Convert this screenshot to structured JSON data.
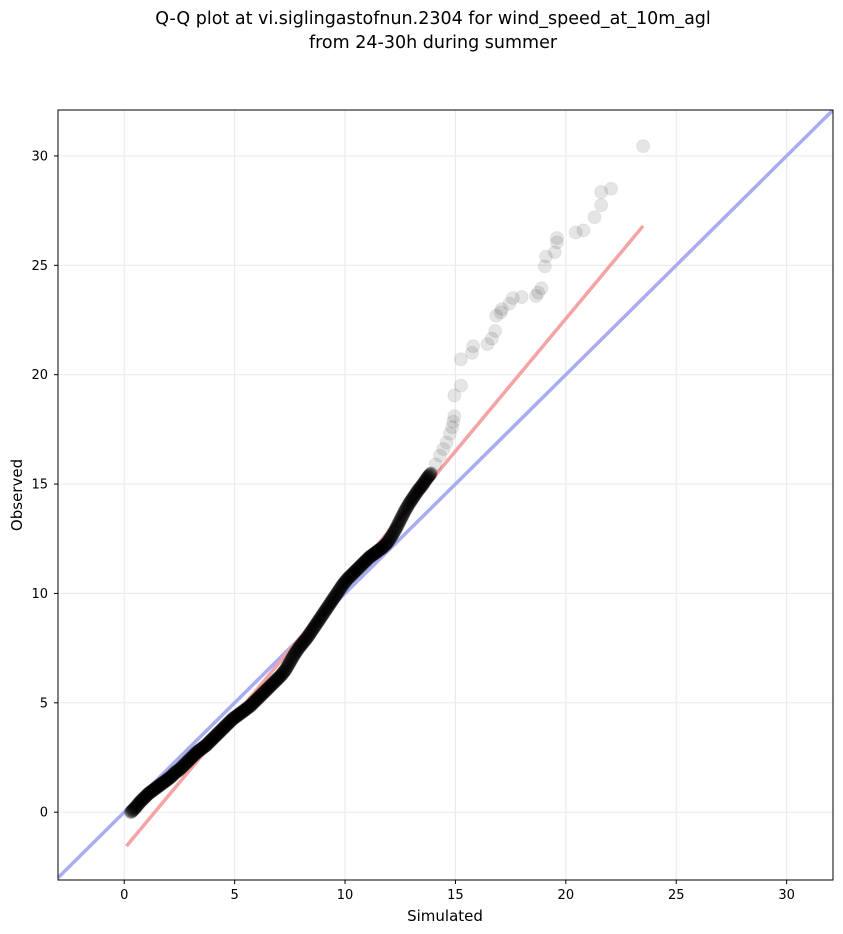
{
  "chart_data": {
    "type": "scatter",
    "title_lines": [
      "Q-Q plot at vi.siglingastofnun.2304 for wind_speed_at_10m_agl",
      "from 24-30h during summer"
    ],
    "xlabel": "Simulated",
    "ylabel": "Observed",
    "xlim": [
      -3.0,
      32.1
    ],
    "ylim": [
      -3.1,
      32.1
    ],
    "xticks": [
      "0",
      "5",
      "10",
      "15",
      "20",
      "25",
      "30"
    ],
    "yticks": [
      "0",
      "5",
      "10",
      "15",
      "20",
      "25",
      "30"
    ],
    "grid": true,
    "reference_line": {
      "name": "1:1",
      "color": "#a9acf0",
      "x": [
        -3.0,
        32.1
      ],
      "y": [
        -3.0,
        32.1
      ]
    },
    "fit_line": {
      "color": "#f5a3a3",
      "x": [
        0.1,
        23.5
      ],
      "y": [
        -1.55,
        26.8
      ]
    },
    "point_color": "#000000",
    "upper_tail_points": [
      [
        14.1,
        15.9
      ],
      [
        14.3,
        16.3
      ],
      [
        14.45,
        16.6
      ],
      [
        14.6,
        16.9
      ],
      [
        14.75,
        17.3
      ],
      [
        14.85,
        17.6
      ],
      [
        14.9,
        17.85
      ],
      [
        14.95,
        18.1
      ],
      [
        14.95,
        19.05
      ],
      [
        15.25,
        19.5
      ],
      [
        15.25,
        20.7
      ],
      [
        15.75,
        21.0
      ],
      [
        15.8,
        21.3
      ],
      [
        16.45,
        21.4
      ],
      [
        16.65,
        21.65
      ],
      [
        16.8,
        22.0
      ],
      [
        16.85,
        22.7
      ],
      [
        17.05,
        22.85
      ],
      [
        17.1,
        23.0
      ],
      [
        17.45,
        23.25
      ],
      [
        17.6,
        23.5
      ],
      [
        18.0,
        23.55
      ],
      [
        18.65,
        23.6
      ],
      [
        18.75,
        23.75
      ],
      [
        18.9,
        23.95
      ],
      [
        19.05,
        24.95
      ],
      [
        19.1,
        25.4
      ],
      [
        19.5,
        25.6
      ],
      [
        19.6,
        26.05
      ],
      [
        19.6,
        26.25
      ],
      [
        20.45,
        26.5
      ],
      [
        20.8,
        26.6
      ],
      [
        21.3,
        27.2
      ],
      [
        21.6,
        27.75
      ],
      [
        21.6,
        28.35
      ],
      [
        22.05,
        28.5
      ],
      [
        23.5,
        30.45
      ]
    ],
    "dense_points": [
      [
        0.3,
        0.0
      ],
      [
        0.5,
        0.2
      ],
      [
        0.7,
        0.45
      ],
      [
        0.9,
        0.65
      ],
      [
        1.1,
        0.85
      ],
      [
        1.3,
        1.0
      ],
      [
        1.5,
        1.15
      ],
      [
        1.7,
        1.3
      ],
      [
        1.9,
        1.45
      ],
      [
        2.1,
        1.6
      ],
      [
        2.3,
        1.8
      ],
      [
        2.5,
        1.95
      ],
      [
        2.7,
        2.15
      ],
      [
        2.9,
        2.35
      ],
      [
        3.1,
        2.55
      ],
      [
        3.3,
        2.75
      ],
      [
        3.5,
        2.9
      ],
      [
        3.7,
        3.05
      ],
      [
        3.9,
        3.25
      ],
      [
        4.1,
        3.45
      ],
      [
        4.3,
        3.65
      ],
      [
        4.5,
        3.85
      ],
      [
        4.7,
        4.05
      ],
      [
        4.9,
        4.25
      ],
      [
        5.1,
        4.4
      ],
      [
        5.3,
        4.55
      ],
      [
        5.5,
        4.7
      ],
      [
        5.7,
        4.85
      ],
      [
        5.9,
        5.05
      ],
      [
        6.1,
        5.25
      ],
      [
        6.3,
        5.45
      ],
      [
        6.5,
        5.65
      ],
      [
        6.7,
        5.85
      ],
      [
        6.9,
        6.05
      ],
      [
        7.1,
        6.25
      ],
      [
        7.3,
        6.5
      ],
      [
        7.5,
        6.85
      ],
      [
        7.7,
        7.2
      ],
      [
        7.9,
        7.5
      ],
      [
        8.1,
        7.75
      ],
      [
        8.3,
        8.0
      ],
      [
        8.5,
        8.3
      ],
      [
        8.7,
        8.6
      ],
      [
        8.9,
        8.9
      ],
      [
        9.1,
        9.2
      ],
      [
        9.3,
        9.5
      ],
      [
        9.5,
        9.8
      ],
      [
        9.7,
        10.1
      ],
      [
        9.9,
        10.4
      ],
      [
        10.1,
        10.65
      ],
      [
        10.3,
        10.85
      ],
      [
        10.5,
        11.05
      ],
      [
        10.7,
        11.25
      ],
      [
        10.9,
        11.45
      ],
      [
        11.1,
        11.65
      ],
      [
        11.3,
        11.8
      ],
      [
        11.5,
        11.95
      ],
      [
        11.7,
        12.1
      ],
      [
        11.9,
        12.3
      ],
      [
        12.1,
        12.6
      ],
      [
        12.3,
        12.95
      ],
      [
        12.5,
        13.35
      ],
      [
        12.7,
        13.75
      ],
      [
        12.9,
        14.1
      ],
      [
        13.1,
        14.4
      ],
      [
        13.3,
        14.7
      ],
      [
        13.5,
        14.95
      ],
      [
        13.7,
        15.25
      ],
      [
        13.9,
        15.5
      ]
    ]
  }
}
